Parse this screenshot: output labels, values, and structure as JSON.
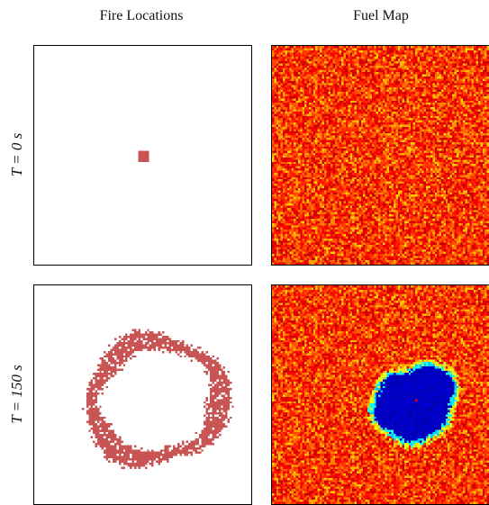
{
  "columns": {
    "fire_title": "Fire Locations",
    "fuel_title": "Fuel Map"
  },
  "rows": [
    {
      "label": "T = 0 s"
    },
    {
      "label": "T = 150 s"
    }
  ],
  "colors": {
    "fire": "#c85454",
    "fuel_colormap": "jet",
    "panel_border": "#000000",
    "background": "#ffffff"
  }
}
